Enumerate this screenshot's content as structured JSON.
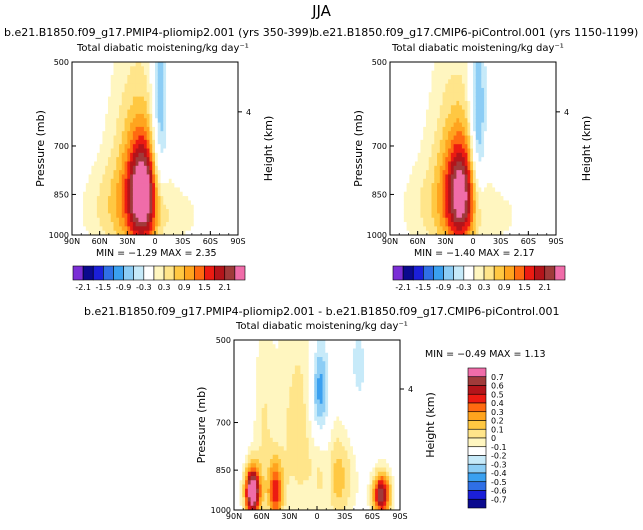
{
  "page_title": "JJA",
  "colors": {
    "palette_main": [
      "#7b2fd6",
      "#0b0a8e",
      "#1b1fd9",
      "#2f6fe6",
      "#3aa0f0",
      "#8ccdf5",
      "#c7eaf9",
      "#ffffff",
      "#fff6c0",
      "#ffe58a",
      "#ffc842",
      "#ffa41e",
      "#ff6a10",
      "#ec1b12",
      "#b4141a",
      "#a03a3a",
      "#f06ca9"
    ],
    "palette_diff": [
      "#7b2fd6",
      "#0b0a8e",
      "#1b1fd9",
      "#2f6fe6",
      "#3aa0f0",
      "#8ccdf5",
      "#c7eaf9",
      "#ffffff",
      "#fff6c0",
      "#ffe58a",
      "#ffc842",
      "#ffa41e",
      "#ff6a10",
      "#ec1b12",
      "#b4141a",
      "#a03a3a",
      "#f06ca9"
    ],
    "background_field": "#c7eaf9"
  },
  "chart_data": [
    {
      "type": "heatmap",
      "id": "panel-pliomip",
      "title": "b.e21.B1850.f09_g17.PMIP4-pliomip2.001  (yrs 350-399)",
      "subtitle": "Total diabatic moistening/kg day⁻¹",
      "xlabel": "",
      "ylabel": "Pressure (mb)",
      "ylabel_right": "Height (km)",
      "x_tick_labels": [
        "90N",
        "60N",
        "30N",
        "0",
        "30S",
        "60S",
        "90S"
      ],
      "x_tick_values": [
        90,
        60,
        30,
        0,
        -30,
        -60,
        -90
      ],
      "y_tick_labels": [
        "500",
        "700",
        "850",
        "1000"
      ],
      "y_tick_values": [
        500,
        700,
        850,
        1000
      ],
      "y_right_ticks": [
        "4"
      ],
      "y_right_values": [
        4
      ],
      "xlim": [
        90,
        -90
      ],
      "ylim": [
        1000,
        500
      ],
      "stats": "MIN = −1.29   MAX =  2.35",
      "min": -1.29,
      "max": 2.35,
      "colorbar_labels": [
        "-2.1",
        "-1.5",
        "-0.9",
        "-0.3",
        "0.3",
        "0.9",
        "1.5",
        "2.1"
      ],
      "features": [
        {
          "lat": 13,
          "p": 850,
          "sigma_lat": 12,
          "sigma_p": 130,
          "value": 2.3
        },
        {
          "lat": 20,
          "p": 760,
          "sigma_lat": 22,
          "sigma_p": 260,
          "value": 0.9
        },
        {
          "lat": -5,
          "p": 650,
          "sigma_lat": 6,
          "sigma_p": 180,
          "value": -1.2
        },
        {
          "lat": 42,
          "p": 900,
          "sigma_lat": 30,
          "sigma_p": 120,
          "value": 0.6
        },
        {
          "lat": -30,
          "p": 920,
          "sigma_lat": 18,
          "sigma_p": 80,
          "value": 0.4
        },
        {
          "lat": -45,
          "p": 600,
          "sigma_lat": 25,
          "sigma_p": 150,
          "value": -0.3
        }
      ]
    },
    {
      "type": "heatmap",
      "id": "panel-picontrol",
      "title": "b.e21.B1850.f09_g17.CMIP6-piControl.001  (yrs 1150-1199)",
      "subtitle": "Total diabatic moistening/kg day⁻¹",
      "xlabel": "",
      "ylabel": "Pressure (mb)",
      "ylabel_right": "Height (km)",
      "x_tick_labels": [
        "90N",
        "60N",
        "30N",
        "0",
        "30S",
        "60S",
        "90S"
      ],
      "x_tick_values": [
        90,
        60,
        30,
        0,
        -30,
        -60,
        -90
      ],
      "y_tick_labels": [
        "500",
        "700",
        "850",
        "1000"
      ],
      "y_tick_values": [
        500,
        700,
        850,
        1000
      ],
      "y_right_ticks": [
        "4"
      ],
      "y_right_values": [
        4
      ],
      "xlim": [
        90,
        -90
      ],
      "ylim": [
        1000,
        500
      ],
      "stats": "MIN = −1.40   MAX =  2.17",
      "min": -1.4,
      "max": 2.17,
      "colorbar_labels": [
        "-2.1",
        "-1.5",
        "-0.9",
        "-0.3",
        "0.3",
        "0.9",
        "1.5",
        "2.1"
      ],
      "features": [
        {
          "lat": 13,
          "p": 850,
          "sigma_lat": 12,
          "sigma_p": 130,
          "value": 2.1
        },
        {
          "lat": 20,
          "p": 760,
          "sigma_lat": 22,
          "sigma_p": 260,
          "value": 0.8
        },
        {
          "lat": -5,
          "p": 650,
          "sigma_lat": 6,
          "sigma_p": 180,
          "value": -1.3
        },
        {
          "lat": 42,
          "p": 900,
          "sigma_lat": 30,
          "sigma_p": 120,
          "value": 0.5
        },
        {
          "lat": -30,
          "p": 920,
          "sigma_lat": 18,
          "sigma_p": 80,
          "value": 0.4
        },
        {
          "lat": -45,
          "p": 600,
          "sigma_lat": 25,
          "sigma_p": 150,
          "value": -0.3
        }
      ]
    },
    {
      "type": "heatmap",
      "id": "panel-difference",
      "title": "b.e21.B1850.f09_g17.PMIP4-pliomip2.001  -  b.e21.B1850.f09_g17.CMIP6-piControl.001",
      "subtitle": "Total diabatic moistening/kg day⁻¹",
      "xlabel": "",
      "ylabel": "Pressure (mb)",
      "ylabel_right": "Height (km)",
      "x_tick_labels": [
        "90N",
        "60N",
        "30N",
        "0",
        "30S",
        "60S",
        "90S"
      ],
      "x_tick_values": [
        90,
        60,
        30,
        0,
        -30,
        -60,
        -90
      ],
      "y_tick_labels": [
        "500",
        "700",
        "850",
        "1000"
      ],
      "y_tick_values": [
        500,
        700,
        850,
        1000
      ],
      "y_right_ticks": [
        "4"
      ],
      "y_right_values": [
        4
      ],
      "xlim": [
        90,
        -90
      ],
      "ylim": [
        1000,
        500
      ],
      "stats": "MIN =  −0.49    MAX =   1.13",
      "min": -0.49,
      "max": 1.13,
      "colorbar_labels": [
        "0.7",
        "0.6",
        "0.5",
        "0.4",
        "0.3",
        "0.2",
        "0.1",
        "0",
        "-0.1",
        "-0.2",
        "-0.3",
        "-0.4",
        "-0.5",
        "-0.6",
        "-0.7"
      ],
      "features": [
        {
          "lat": -3,
          "p": 620,
          "sigma_lat": 7,
          "sigma_p": 90,
          "value": -0.45
        },
        {
          "lat": 70,
          "p": 930,
          "sigma_lat": 6,
          "sigma_p": 70,
          "value": 1.1
        },
        {
          "lat": 45,
          "p": 930,
          "sigma_lat": 6,
          "sigma_p": 80,
          "value": 0.6
        },
        {
          "lat": -70,
          "p": 940,
          "sigma_lat": 7,
          "sigma_p": 60,
          "value": 0.9
        },
        {
          "lat": -22,
          "p": 880,
          "sigma_lat": 14,
          "sigma_p": 120,
          "value": 0.35
        },
        {
          "lat": 20,
          "p": 720,
          "sigma_lat": 18,
          "sigma_p": 250,
          "value": 0.25
        },
        {
          "lat": 58,
          "p": 700,
          "sigma_lat": 8,
          "sigma_p": 200,
          "value": 0.18
        },
        {
          "lat": -12,
          "p": 880,
          "sigma_lat": 4,
          "sigma_p": 100,
          "value": -0.15
        },
        {
          "lat": -45,
          "p": 560,
          "sigma_lat": 10,
          "sigma_p": 120,
          "value": -0.12
        }
      ]
    }
  ]
}
